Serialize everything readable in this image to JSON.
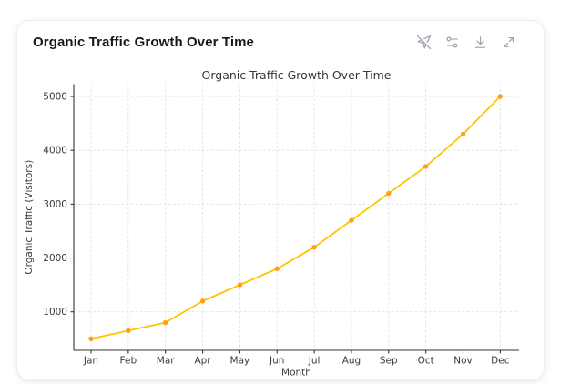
{
  "card": {
    "title": "Organic Traffic Growth Over Time",
    "toolbar": {
      "icons": [
        "navigation-off-icon",
        "sliders-icon",
        "download-icon",
        "expand-icon"
      ]
    }
  },
  "chart_data": {
    "type": "line",
    "title": "Organic Traffic Growth Over Time",
    "xlabel": "Month",
    "ylabel": "Organic Traffic (Visitors)",
    "categories": [
      "Jan",
      "Feb",
      "Mar",
      "Apr",
      "May",
      "Jun",
      "Jul",
      "Aug",
      "Sep",
      "Oct",
      "Nov",
      "Dec"
    ],
    "series": [
      {
        "name": "Organic Traffic",
        "values": [
          500,
          650,
          800,
          1200,
          1500,
          1800,
          2200,
          2700,
          3200,
          3700,
          4300,
          5000
        ]
      }
    ],
    "yticks": [
      1000,
      2000,
      3000,
      4000,
      5000
    ],
    "ylim": [
      275,
      5225
    ],
    "grid": true,
    "grid_style": "dashed",
    "legend": null,
    "line_color": "#ffc400",
    "marker_color": "#ff9f1a",
    "axis_color": "#333333",
    "tick_text_color": "#3a3a3a",
    "gridline_color": "#e0e0e0"
  }
}
